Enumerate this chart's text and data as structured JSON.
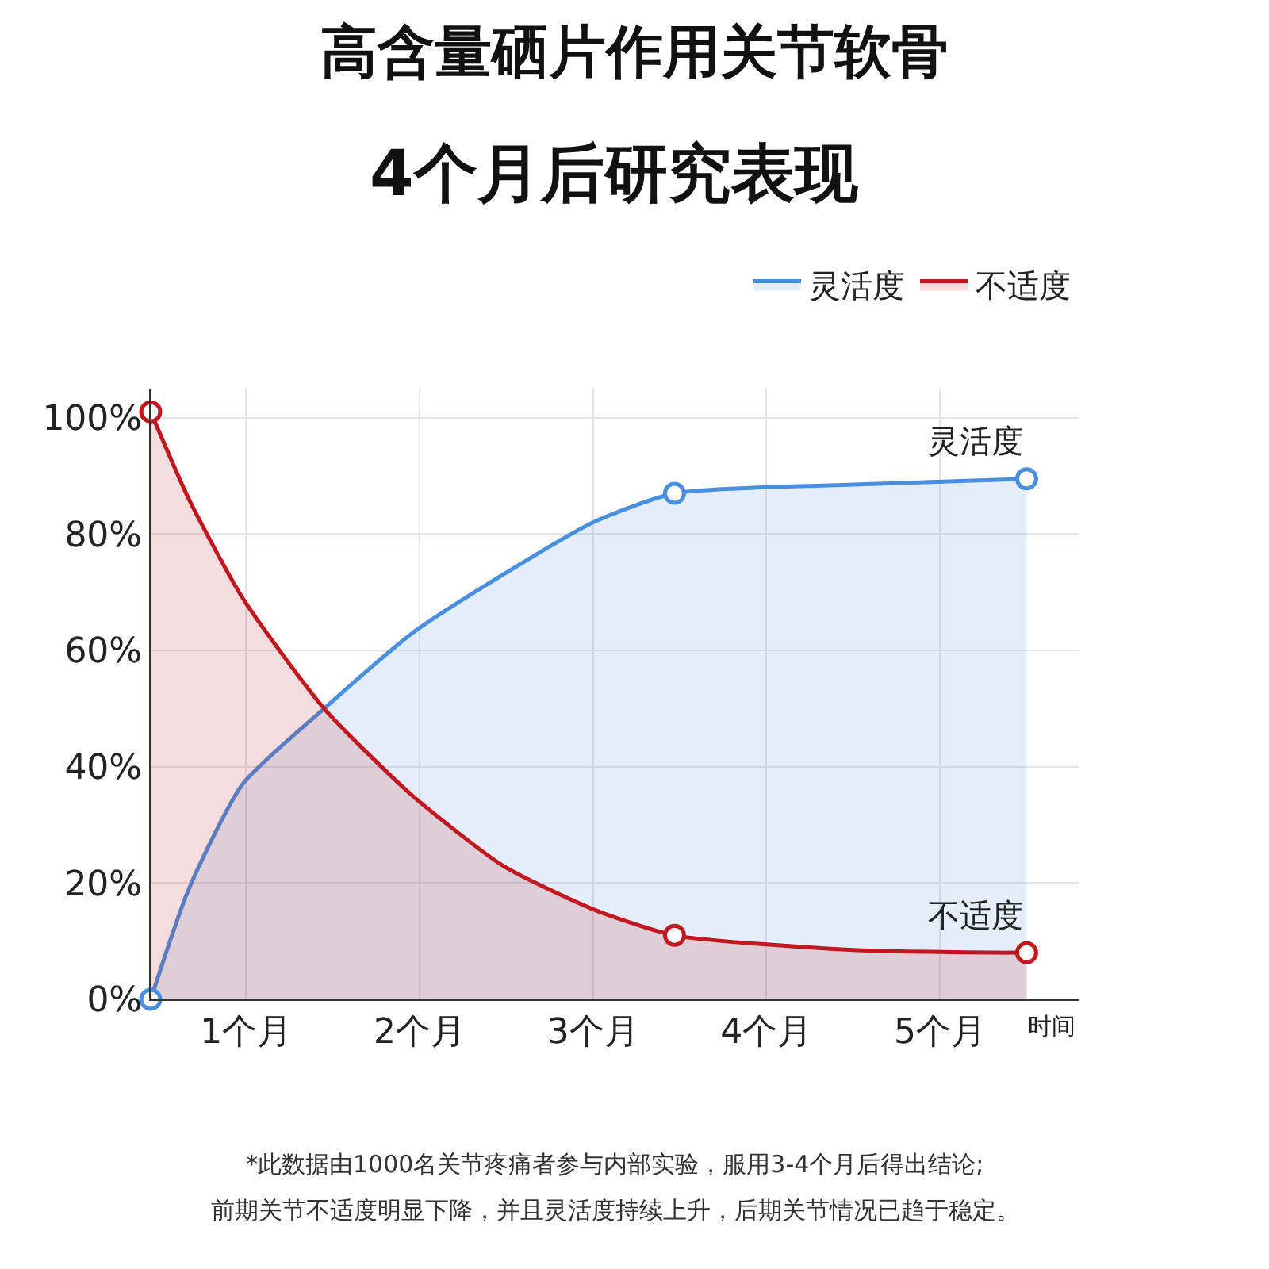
{
  "chart_data": {
    "type": "area",
    "title": "高含量硒片作用关节软骨",
    "subtitle": "4个月后研究表现",
    "xlabel": "时间",
    "xlim": [
      0.45,
      5.8
    ],
    "xticks": [
      {
        "value": 1,
        "label": "1个月"
      },
      {
        "value": 2,
        "label": "2个月"
      },
      {
        "value": 3,
        "label": "3个月"
      },
      {
        "value": 4,
        "label": "4个月"
      },
      {
        "value": 5,
        "label": "5个月"
      }
    ],
    "ylim": [
      0,
      105
    ],
    "yticks": [
      {
        "value": 0,
        "label": "0%"
      },
      {
        "value": 20,
        "label": "20%"
      },
      {
        "value": 40,
        "label": "40%"
      },
      {
        "value": 60,
        "label": "60%"
      },
      {
        "value": 80,
        "label": "80%"
      },
      {
        "value": 100,
        "label": "100%"
      }
    ],
    "grid": true,
    "legend": "top right",
    "line_style": "solid",
    "series": [
      {
        "name": "灵活度",
        "color": "#4a8fdf",
        "marker": "none",
        "x": [
          0.45,
          0.67,
          0.98,
          1.45,
          1.96,
          2.48,
          3.0,
          3.47,
          4.5,
          5.5
        ],
        "values": [
          0,
          19,
          37,
          50,
          63,
          73,
          82,
          87,
          88.5,
          89.5
        ]
      },
      {
        "name": "不适度",
        "color": "#c0181e",
        "marker": "none",
        "x": [
          0.45,
          0.67,
          0.98,
          1.45,
          1.96,
          2.48,
          3.0,
          3.47,
          4.5,
          5.5
        ],
        "values": [
          101,
          86,
          69,
          50,
          35,
          23,
          15.5,
          11,
          8.5,
          8
        ]
      },
      {
        "type": "scatter",
        "color": "#4a8fdf",
        "marker": "circle",
        "x": [
          0.45,
          3.47,
          5.5
        ],
        "values": [
          0,
          87,
          89.5
        ]
      },
      {
        "type": "scatter",
        "color": "#c0181e",
        "marker": "circle",
        "x": [
          0.45,
          3.47,
          5.5
        ],
        "values": [
          101,
          11,
          8
        ]
      }
    ],
    "annotations": [
      "*此数据由1000名关节疼痛者参与内部实验，服用3-4个月后得出结论;",
      "前期关节不适度明显下降，并且灵活度持续上升，后期关节情况已趋于稳定。"
    ]
  }
}
